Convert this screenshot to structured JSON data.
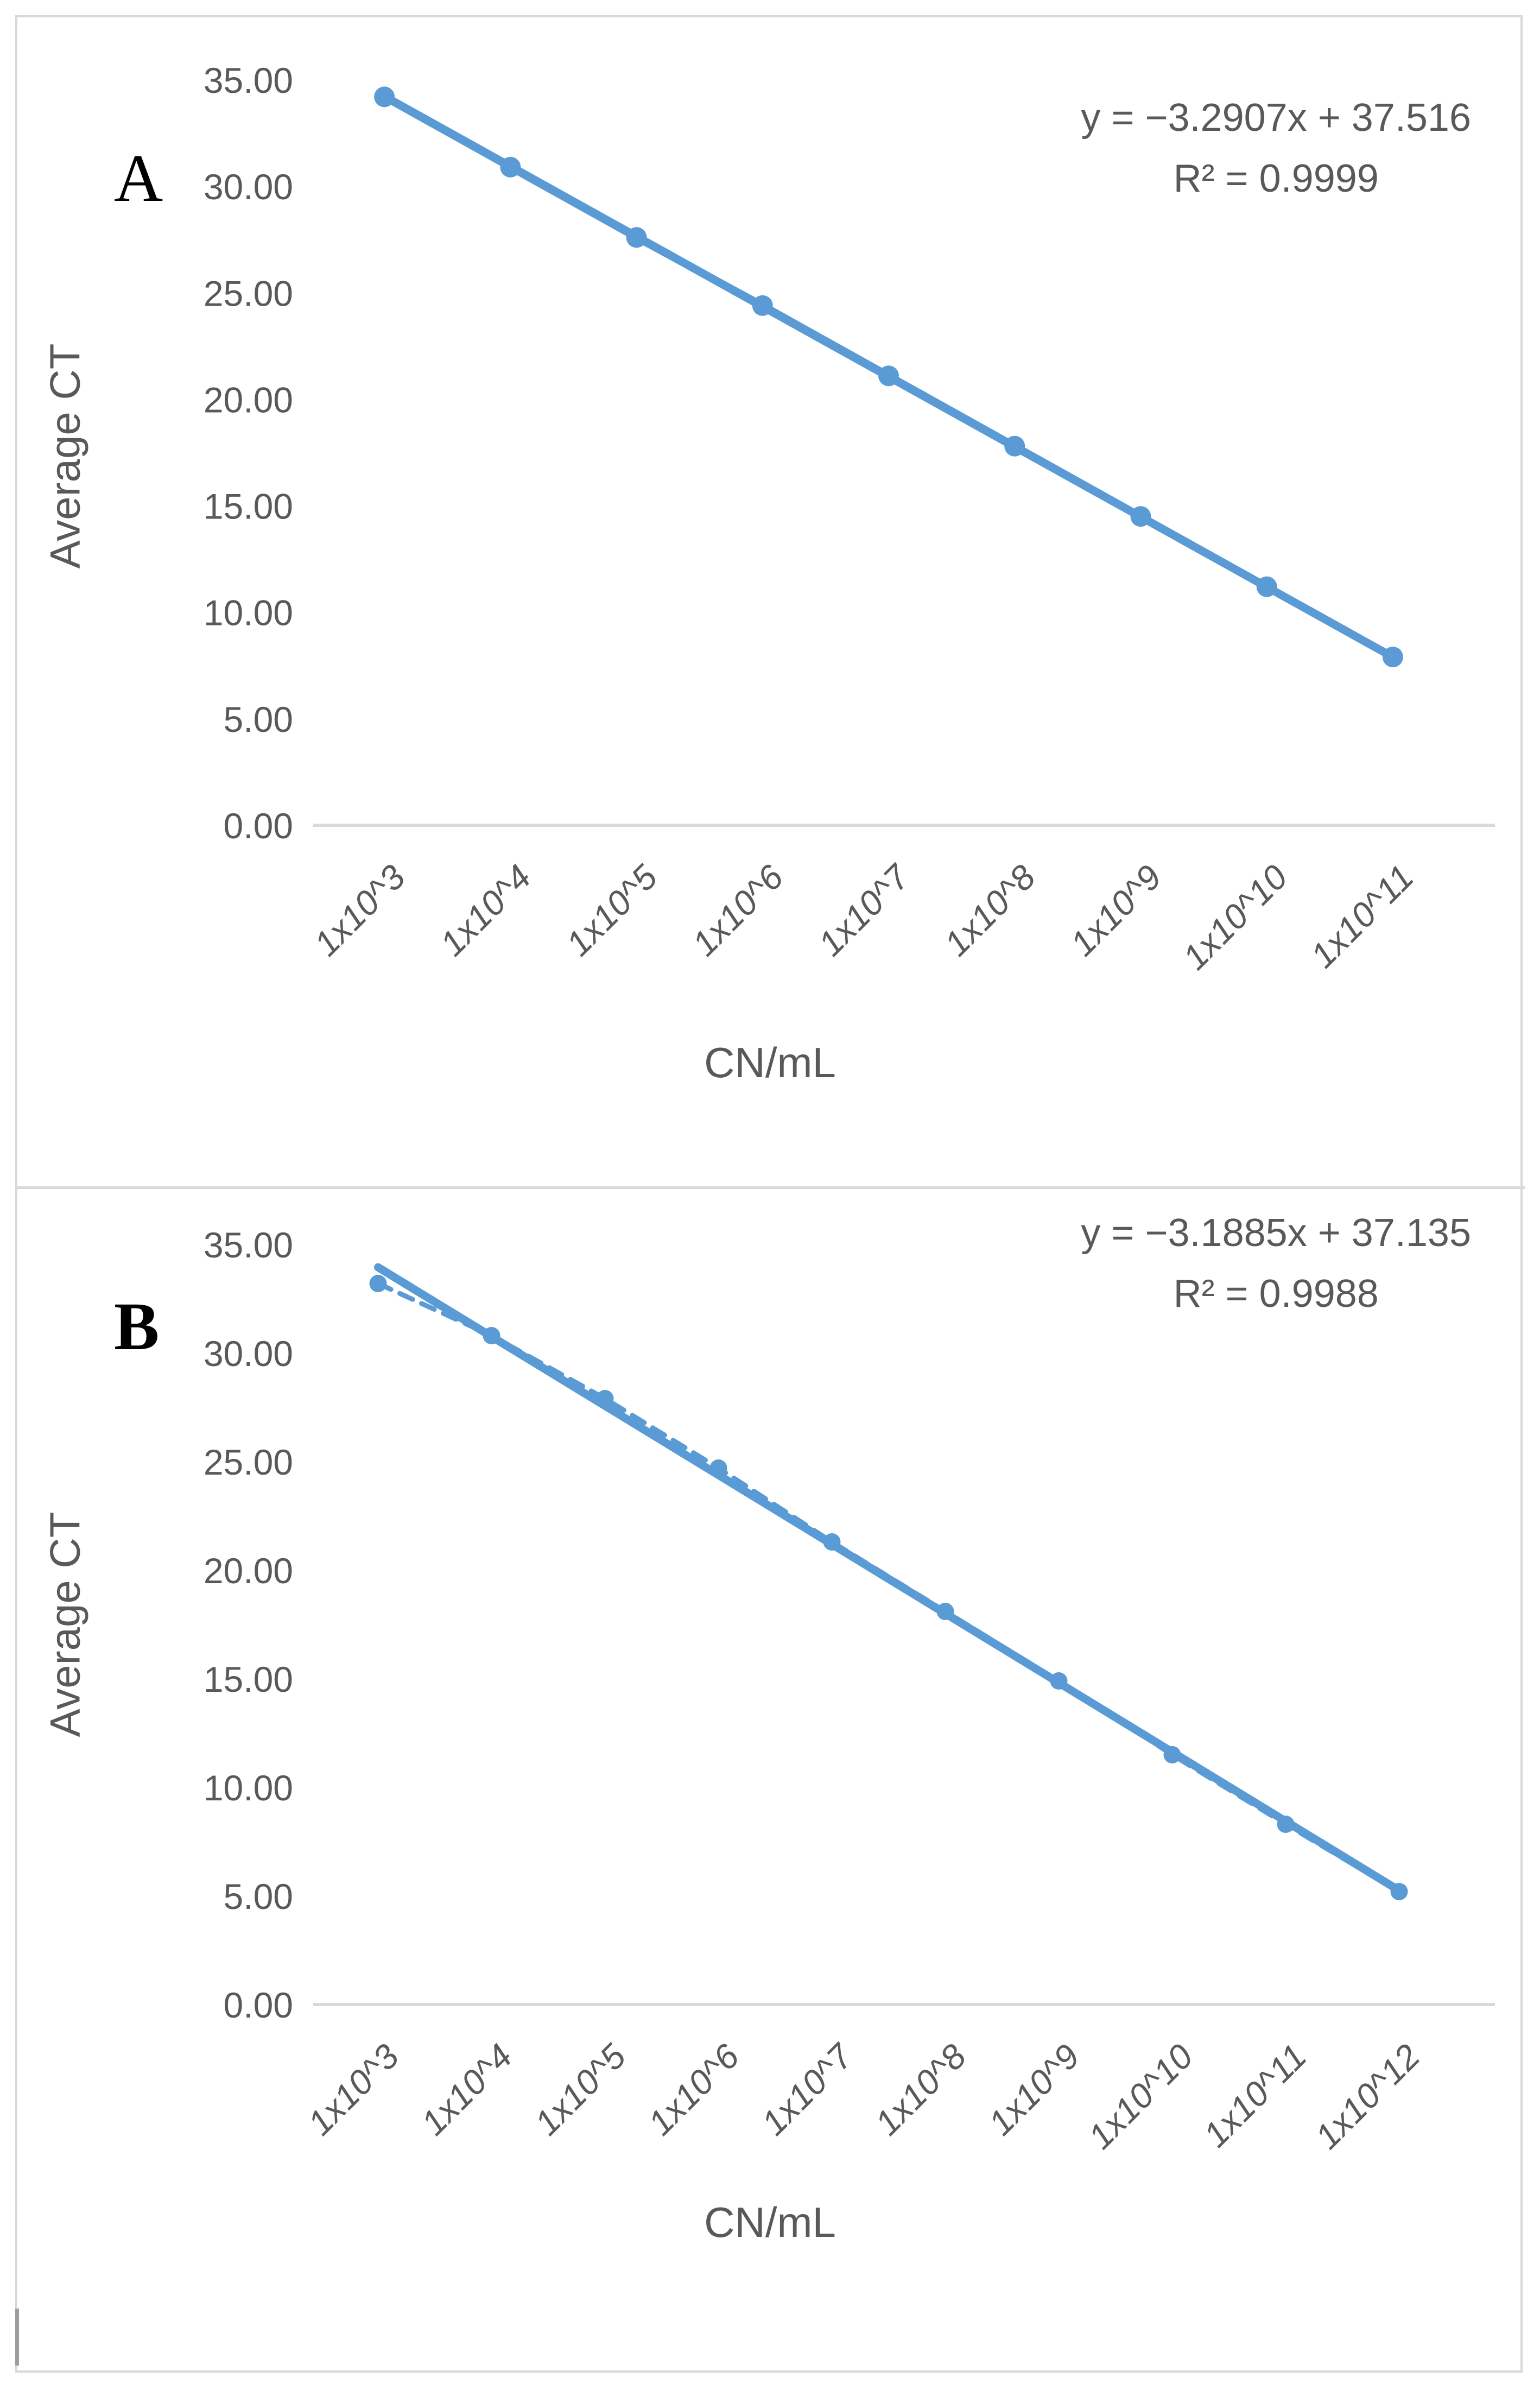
{
  "page": {
    "frame_color": "#d9d9d9",
    "accent_mark_color": "#9e9e9e",
    "background_color": "#ffffff"
  },
  "chart_data": [
    {
      "type": "line",
      "panel_label": "A",
      "title": "",
      "xlabel": "CN/mL",
      "ylabel": "Average CT",
      "categories": [
        "1x10^3",
        "1x10^4",
        "1x10^5",
        "1x10^6",
        "1x10^7",
        "1x10^8",
        "1x10^9",
        "1x10^10",
        "1x10^11"
      ],
      "values": [
        34.2,
        30.9,
        27.6,
        24.4,
        21.1,
        17.8,
        14.5,
        11.2,
        7.9
      ],
      "ylim": [
        0,
        35
      ],
      "ytick_step": 5,
      "ytick_format": "2dp",
      "grid": false,
      "legend": "none",
      "equation": "y = −3.2907x + 37.516",
      "r_squared": "R² = 0.9999",
      "trendline": {
        "slope": -3.2907,
        "intercept": 37.516
      },
      "data_line_dashed": false,
      "line_color": "#5b9bd5",
      "text_color": "#595959",
      "axis_color": "#d9d9d9"
    },
    {
      "type": "line",
      "panel_label": "B",
      "title": "",
      "xlabel": "CN/mL",
      "ylabel": "Average CT",
      "categories": [
        "1x10^3",
        "1x10^4",
        "1x10^5",
        "1x10^6",
        "1x10^7",
        "1x10^8",
        "1x10^9",
        "1x10^10",
        "1x10^11",
        "1x10^12"
      ],
      "values": [
        33.2,
        30.8,
        27.9,
        24.7,
        21.3,
        18.1,
        14.9,
        11.5,
        8.3,
        5.2
      ],
      "ylim": [
        0,
        35
      ],
      "ytick_step": 5,
      "ytick_format": "2dp",
      "grid": false,
      "legend": "none",
      "equation": "y = −3.1885x + 37.135",
      "r_squared": "R² = 0.9988",
      "trendline": {
        "slope": -3.1885,
        "intercept": 37.135
      },
      "data_line_dashed": true,
      "line_color": "#5b9bd5",
      "text_color": "#595959",
      "axis_color": "#d9d9d9"
    }
  ]
}
